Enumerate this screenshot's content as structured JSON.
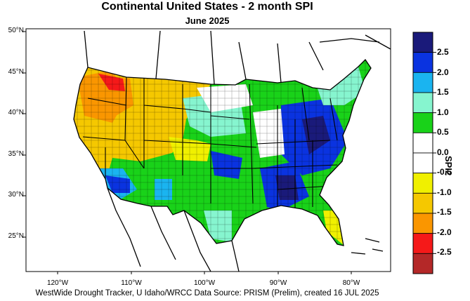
{
  "title": "Continental United States - 2 month SPI",
  "subtitle": "June 2025",
  "footer": "WestWide Drought Tracker, U Idaho/WRCC Data Source: PRISM (Prelim), created 16 JUL 2025",
  "lat_labels": [
    "50°N",
    "45°N",
    "40°N",
    "35°N",
    "30°N",
    "25°N"
  ],
  "lon_labels": [
    "120°W",
    "110°W",
    "100°W",
    "90°W",
    "80°W"
  ],
  "colorbar": {
    "title": "SPI2",
    "tick_labels": [
      "2.5",
      "2.0",
      "1.5",
      "1.0",
      "0.5",
      "0.0",
      "-0.5",
      "-1.0",
      "-1.5",
      "-2.0",
      "-2.5"
    ],
    "colors": [
      "#1a1a7a",
      "#0a33e0",
      "#1ab4f0",
      "#86f5cf",
      "#19d219",
      "#ffffff",
      "#ffffff",
      "#f0f000",
      "#f5c800",
      "#fa9600",
      "#f51919",
      "#b42828"
    ]
  }
}
